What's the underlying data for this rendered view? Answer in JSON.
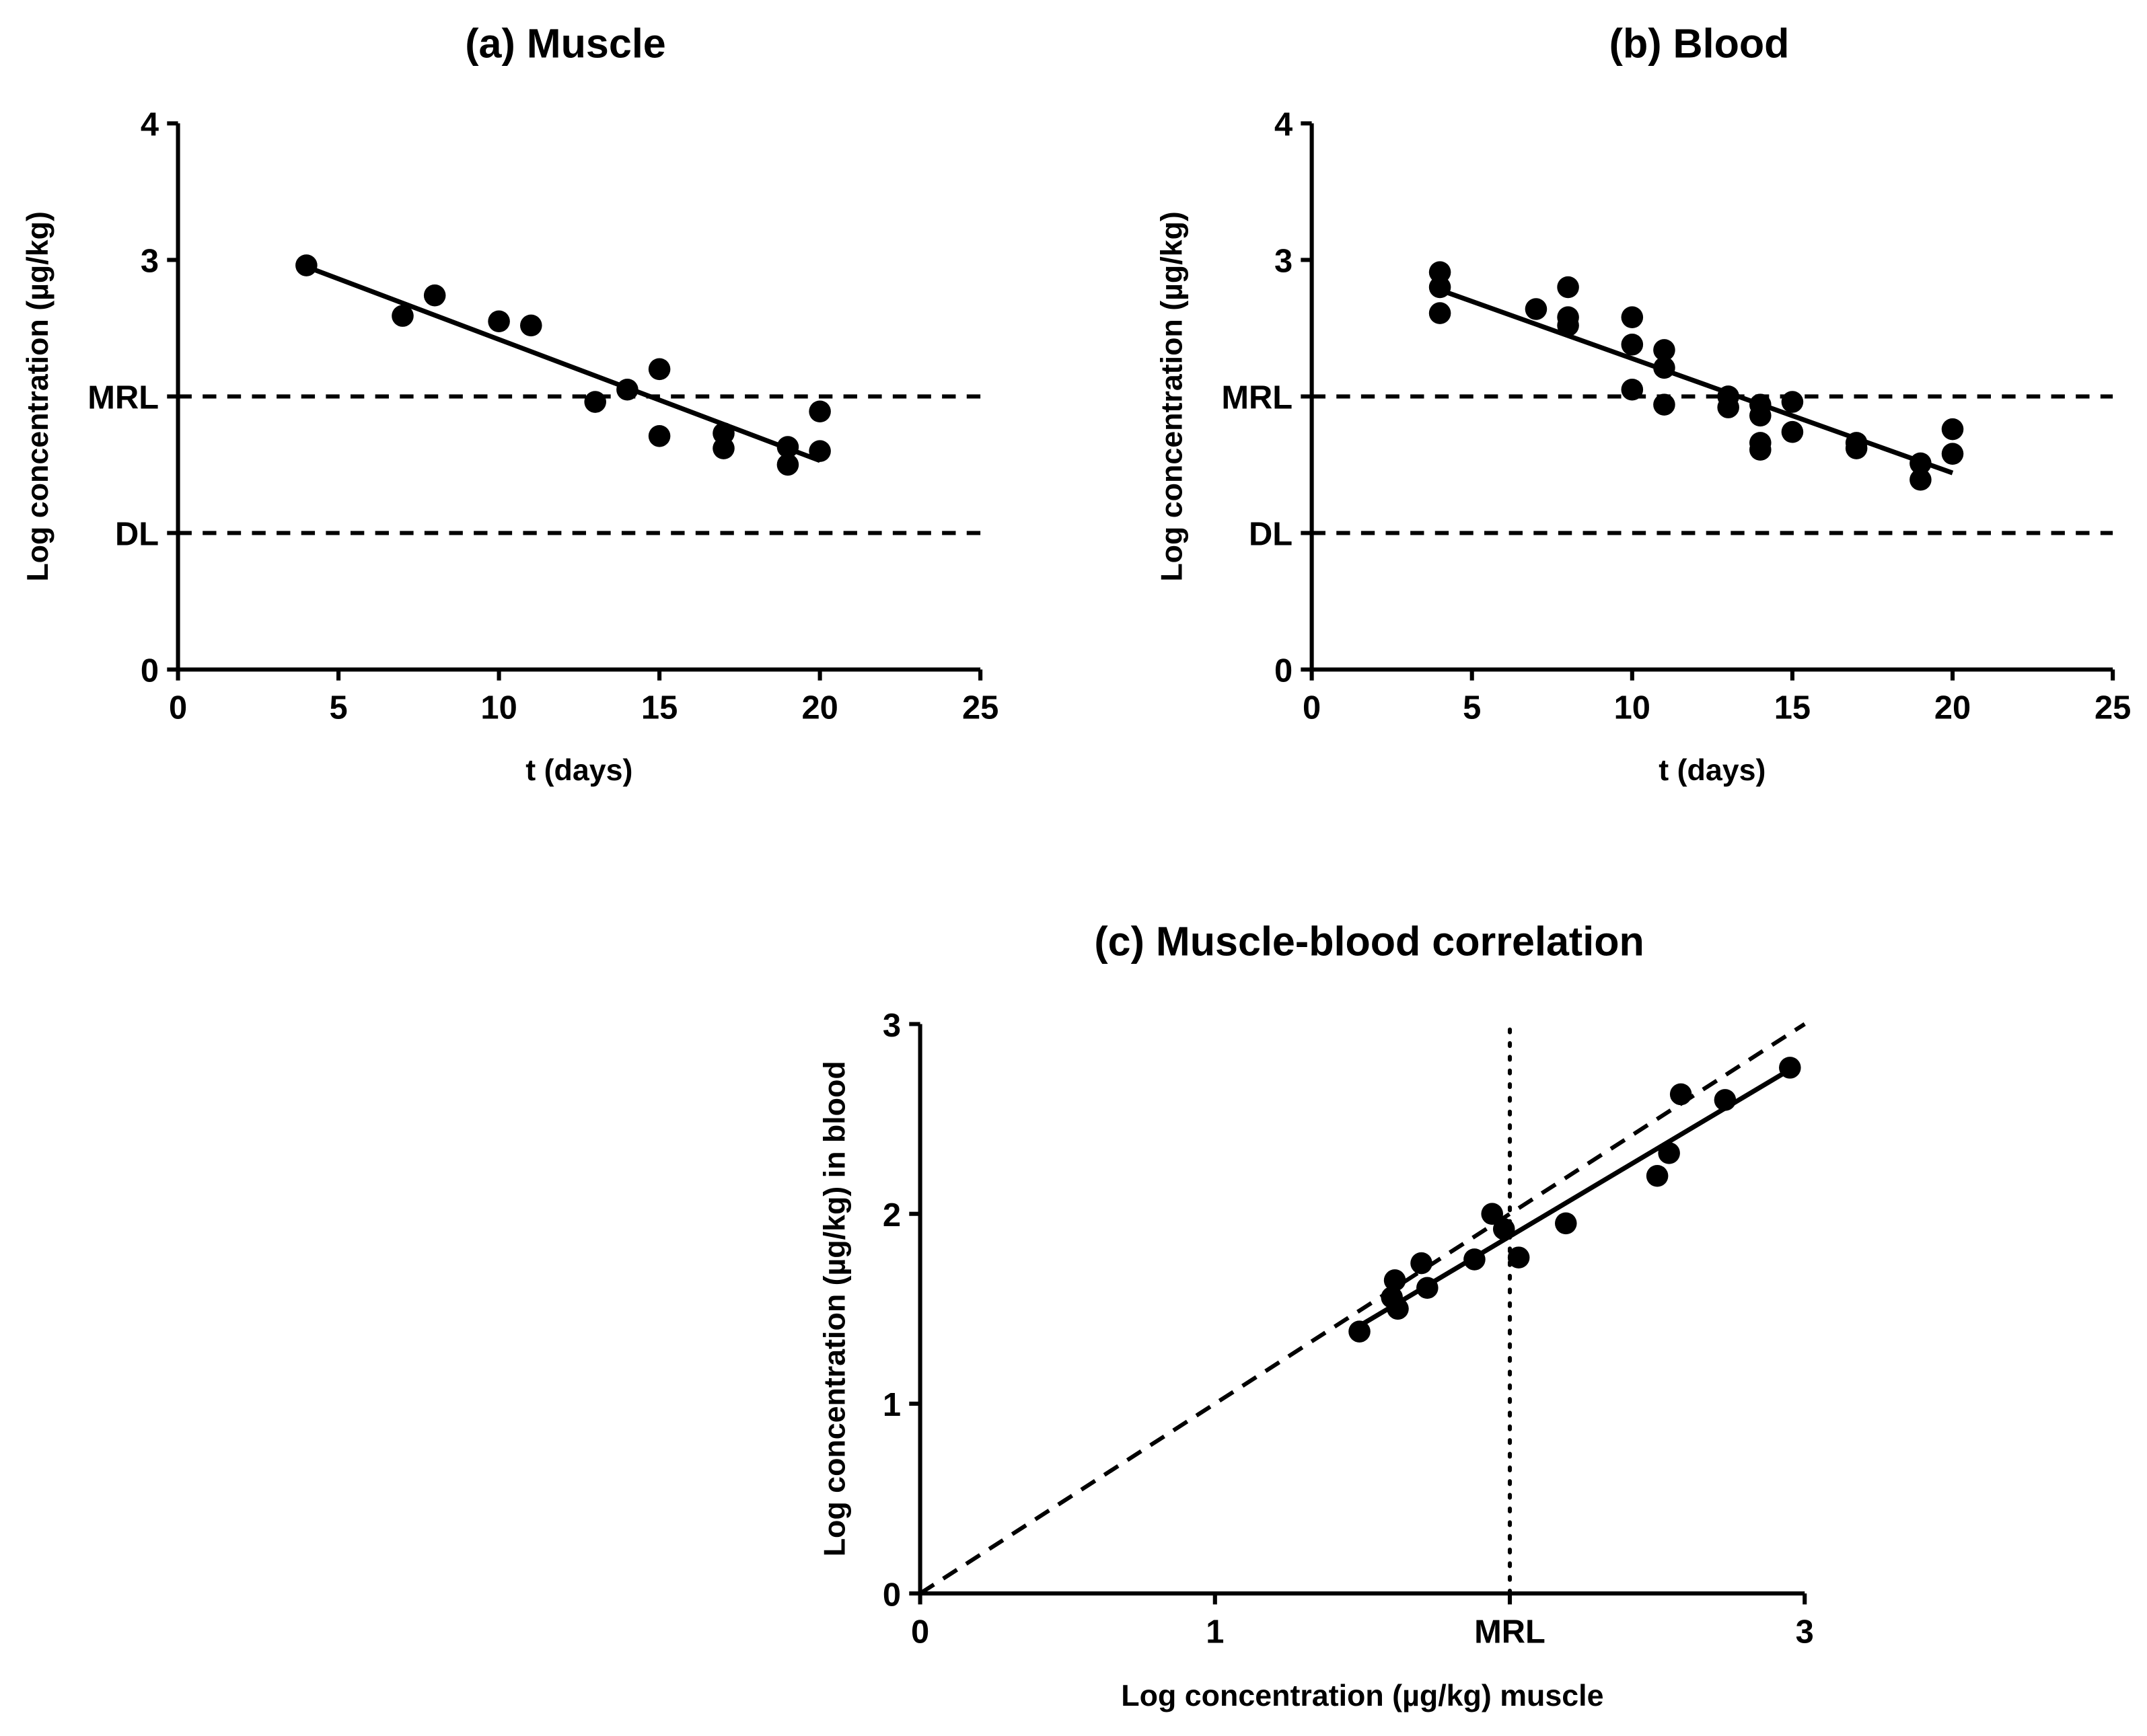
{
  "chart_data": [
    {
      "id": "a",
      "type": "scatter",
      "title": "(a) Muscle",
      "xlabel": "t (days)",
      "ylabel": "Log concentration (µg/kg)",
      "xlim": [
        0,
        25
      ],
      "ylim": [
        0,
        4
      ],
      "xticks": [
        "0",
        "5",
        "10",
        "15",
        "20",
        "25"
      ],
      "yticks": [
        {
          "v": 0,
          "label": "0"
        },
        {
          "v": 1,
          "label": "DL"
        },
        {
          "v": 2,
          "label": "MRL"
        },
        {
          "v": 3,
          "label": "3"
        },
        {
          "v": 4,
          "label": "4"
        }
      ],
      "hlines": [
        {
          "name": "MRL",
          "y": 2
        },
        {
          "name": "DL",
          "y": 1
        }
      ],
      "points": [
        [
          4,
          2.96
        ],
        [
          7,
          2.59
        ],
        [
          8,
          2.74
        ],
        [
          10,
          2.55
        ],
        [
          11,
          2.52
        ],
        [
          13,
          1.96
        ],
        [
          14,
          2.05
        ],
        [
          15,
          2.2
        ],
        [
          15,
          1.71
        ],
        [
          17,
          1.73
        ],
        [
          17,
          1.62
        ],
        [
          19,
          1.63
        ],
        [
          19,
          1.5
        ],
        [
          20,
          1.89
        ],
        [
          20,
          1.6
        ]
      ],
      "fit": [
        [
          4,
          2.95
        ],
        [
          20,
          1.53
        ]
      ]
    },
    {
      "id": "b",
      "type": "scatter",
      "title": "(b) Blood",
      "xlabel": "t (days)",
      "ylabel": "Log concentration (µg/kg)",
      "xlim": [
        0,
        25
      ],
      "ylim": [
        0,
        4
      ],
      "xticks": [
        "0",
        "5",
        "10",
        "15",
        "20",
        "25"
      ],
      "yticks": [
        {
          "v": 0,
          "label": "0"
        },
        {
          "v": 1,
          "label": "DL"
        },
        {
          "v": 2,
          "label": "MRL"
        },
        {
          "v": 3,
          "label": "3"
        },
        {
          "v": 4,
          "label": "4"
        }
      ],
      "hlines": [
        {
          "name": "MRL",
          "y": 2
        },
        {
          "name": "DL",
          "y": 1
        }
      ],
      "points": [
        [
          4,
          2.91
        ],
        [
          4,
          2.8
        ],
        [
          4,
          2.61
        ],
        [
          7,
          2.64
        ],
        [
          8,
          2.8
        ],
        [
          8,
          2.58
        ],
        [
          8,
          2.52
        ],
        [
          10,
          2.58
        ],
        [
          10,
          2.38
        ],
        [
          10,
          2.05
        ],
        [
          11,
          2.34
        ],
        [
          11,
          2.21
        ],
        [
          11,
          1.94
        ],
        [
          13,
          2.0
        ],
        [
          13,
          1.92
        ],
        [
          14,
          1.94
        ],
        [
          14,
          1.86
        ],
        [
          14,
          1.66
        ],
        [
          14,
          1.61
        ],
        [
          15,
          1.96
        ],
        [
          15,
          1.74
        ],
        [
          17,
          1.66
        ],
        [
          17,
          1.62
        ],
        [
          19,
          1.51
        ],
        [
          19,
          1.39
        ],
        [
          20,
          1.76
        ],
        [
          20,
          1.58
        ]
      ],
      "fit": [
        [
          4,
          2.78
        ],
        [
          20,
          1.44
        ]
      ]
    },
    {
      "id": "c",
      "type": "scatter",
      "title": "(c) Muscle-blood correlation",
      "xlabel": "Log concentration (µg/kg) muscle",
      "ylabel": "Log concentration (µg/kg) in blood",
      "xlim": [
        0,
        3
      ],
      "ylim": [
        0,
        3
      ],
      "xticks": [
        {
          "v": 0,
          "label": "0"
        },
        {
          "v": 1,
          "label": "1"
        },
        {
          "v": 2,
          "label": "MRL"
        },
        {
          "v": 3,
          "label": "3"
        }
      ],
      "yticks": [
        {
          "v": 0,
          "label": "0"
        },
        {
          "v": 1,
          "label": "1"
        },
        {
          "v": 2,
          "label": "2"
        },
        {
          "v": 3,
          "label": "3"
        }
      ],
      "vlines": [
        {
          "name": "MRL",
          "x": 2
        }
      ],
      "identity_line": [
        [
          0,
          0
        ],
        [
          3,
          3
        ]
      ],
      "points": [
        [
          1.49,
          1.38
        ],
        [
          1.6,
          1.56
        ],
        [
          1.61,
          1.65
        ],
        [
          1.62,
          1.5
        ],
        [
          1.7,
          1.74
        ],
        [
          1.72,
          1.61
        ],
        [
          1.88,
          1.76
        ],
        [
          1.94,
          2.0
        ],
        [
          1.98,
          1.92
        ],
        [
          2.03,
          1.77
        ],
        [
          2.19,
          1.95
        ],
        [
          2.5,
          2.2
        ],
        [
          2.54,
          2.32
        ],
        [
          2.58,
          2.63
        ],
        [
          2.73,
          2.6
        ],
        [
          2.95,
          2.77
        ]
      ],
      "fit": [
        [
          1.49,
          1.41
        ],
        [
          2.95,
          2.76
        ]
      ]
    }
  ]
}
